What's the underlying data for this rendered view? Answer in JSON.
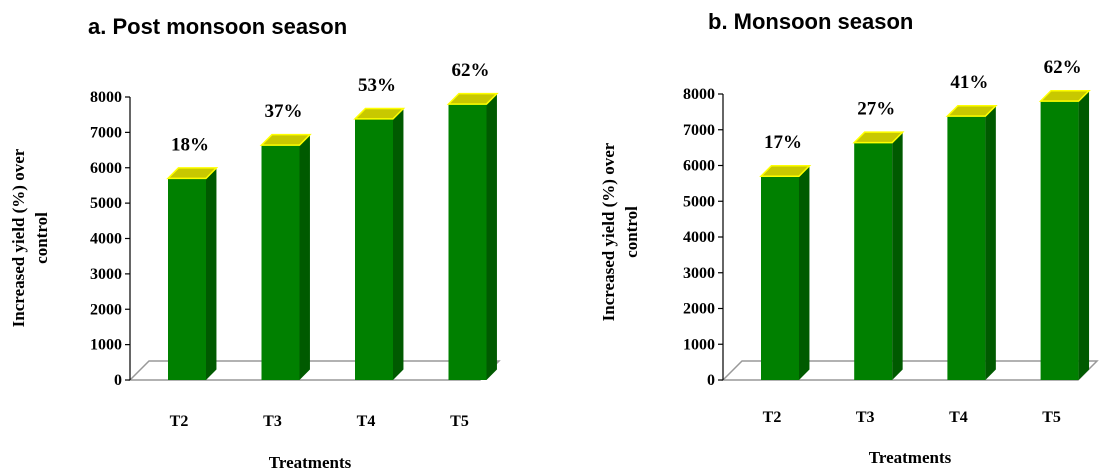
{
  "chart_data": [
    {
      "type": "bar",
      "title": "a.   Post monsoon season",
      "categories": [
        "T2",
        "T3",
        "T4",
        "T5"
      ],
      "values": [
        5700,
        6640,
        7380,
        7800
      ],
      "data_labels": [
        "18%",
        "37%",
        "53%",
        "62%"
      ],
      "xlabel": "Treatments",
      "ylabel": [
        "Increased yield (%) over",
        "control"
      ],
      "ylim": [
        0,
        8000
      ],
      "yticks": [
        "0",
        "1000",
        "2000",
        "3000",
        "4000",
        "5000",
        "6000",
        "7000",
        "8000"
      ],
      "grid": false,
      "style": "3d-column",
      "colors": {
        "bar_front": "#008000",
        "bar_side": "#005a00",
        "bar_top": "#c8c800",
        "bar_top_edge": "#ffff00"
      }
    },
    {
      "type": "bar",
      "title": "b.  Monsoon season",
      "categories": [
        "T2",
        "T3",
        "T4",
        "T5"
      ],
      "values": [
        5700,
        6640,
        7380,
        7800
      ],
      "data_labels": [
        "17%",
        "27%",
        "41%",
        "62%"
      ],
      "xlabel": "Treatments",
      "ylabel": [
        "Increased yield (%) over",
        "control"
      ],
      "ylim": [
        0,
        8000
      ],
      "yticks": [
        "0",
        "1000",
        "2000",
        "3000",
        "4000",
        "5000",
        "6000",
        "7000",
        "8000"
      ],
      "grid": false,
      "style": "3d-column",
      "colors": {
        "bar_front": "#008000",
        "bar_side": "#005a00",
        "bar_top": "#c8c800",
        "bar_top_edge": "#ffff00"
      }
    }
  ]
}
